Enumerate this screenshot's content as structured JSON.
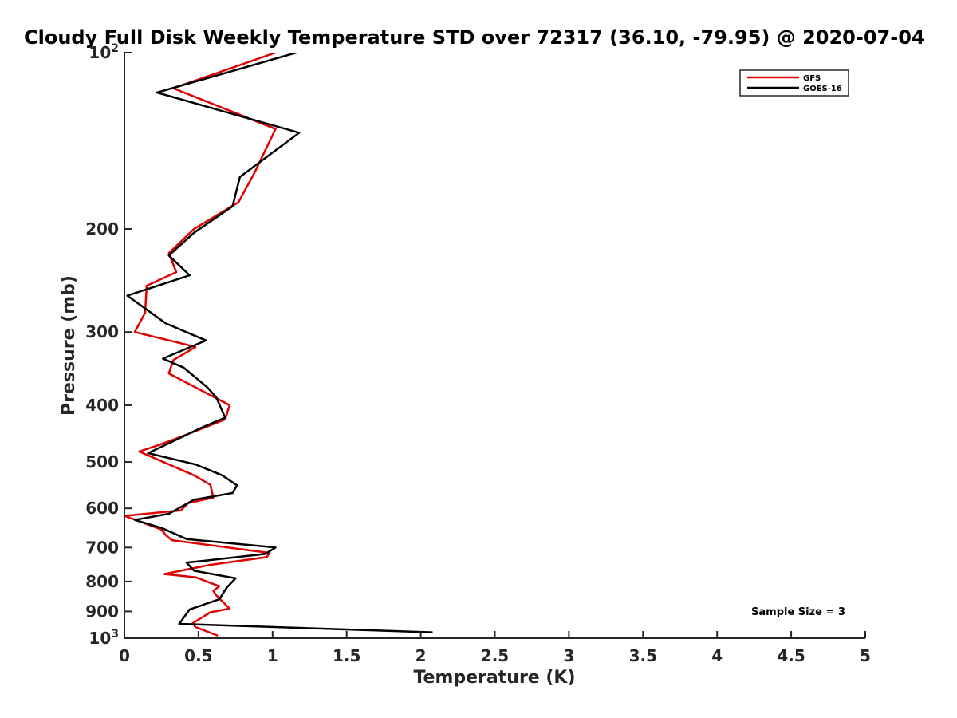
{
  "chart_data": {
    "type": "line",
    "title": "Cloudy Full Disk Weekly Temperature STD over 72317 (36.10, -79.95) @ 2020-07-04",
    "xlabel": "Temperature (K)",
    "ylabel": "Pressure (mb)",
    "xlim": [
      0,
      5
    ],
    "ylim": [
      100,
      1000
    ],
    "y_scale": "log",
    "y_reversed": true,
    "x_ticks": [
      "0",
      "0.5",
      "1",
      "1.5",
      "2",
      "2.5",
      "3",
      "3.5",
      "4",
      "4.5",
      "5"
    ],
    "y_ticks": [
      {
        "value": 100,
        "base": "10",
        "exp": "2"
      },
      {
        "value": 200,
        "label": "200"
      },
      {
        "value": 300,
        "label": "300"
      },
      {
        "value": 400,
        "label": "400"
      },
      {
        "value": 500,
        "label": "500"
      },
      {
        "value": 600,
        "label": "600"
      },
      {
        "value": 700,
        "label": "700"
      },
      {
        "value": 800,
        "label": "800"
      },
      {
        "value": 900,
        "label": "900"
      },
      {
        "value": 1000,
        "base": "10",
        "exp": "3"
      }
    ],
    "grid": false,
    "legend_position": "top-right",
    "annotation": "Sample Size = 3",
    "series": [
      {
        "name": "GFS",
        "color": "#e00000",
        "points": [
          [
            1.02,
            100
          ],
          [
            0.33,
            115
          ],
          [
            1.02,
            135
          ],
          [
            0.88,
            160
          ],
          [
            0.77,
            180
          ],
          [
            0.47,
            200
          ],
          [
            0.3,
            220
          ],
          [
            0.35,
            237
          ],
          [
            0.15,
            250
          ],
          [
            0.14,
            278
          ],
          [
            0.07,
            300
          ],
          [
            0.48,
            318
          ],
          [
            0.33,
            335
          ],
          [
            0.3,
            353
          ],
          [
            0.71,
            400
          ],
          [
            0.68,
            423
          ],
          [
            0.43,
            448
          ],
          [
            0.24,
            467
          ],
          [
            0.1,
            480
          ],
          [
            0.47,
            527
          ],
          [
            0.58,
            547
          ],
          [
            0.6,
            575
          ],
          [
            0.43,
            588
          ],
          [
            0.38,
            605
          ],
          [
            0.0,
            618
          ],
          [
            0.25,
            652
          ],
          [
            0.28,
            667
          ],
          [
            0.32,
            680
          ],
          [
            0.98,
            715
          ],
          [
            0.96,
            727
          ],
          [
            0.57,
            750
          ],
          [
            0.27,
            777
          ],
          [
            0.48,
            787
          ],
          [
            0.64,
            815
          ],
          [
            0.6,
            830
          ],
          [
            0.62,
            845
          ],
          [
            0.71,
            890
          ],
          [
            0.58,
            903
          ],
          [
            0.46,
            943
          ],
          [
            0.48,
            957
          ],
          [
            0.63,
            990
          ]
        ]
      },
      {
        "name": "GOES-16",
        "color": "#000000",
        "points": [
          [
            1.16,
            100
          ],
          [
            0.22,
            117
          ],
          [
            1.18,
            137
          ],
          [
            0.78,
            163
          ],
          [
            0.73,
            183
          ],
          [
            0.47,
            203
          ],
          [
            0.3,
            222
          ],
          [
            0.44,
            240
          ],
          [
            0.02,
            260
          ],
          [
            0.28,
            290
          ],
          [
            0.55,
            310
          ],
          [
            0.26,
            333
          ],
          [
            0.4,
            345
          ],
          [
            0.56,
            373
          ],
          [
            0.62,
            388
          ],
          [
            0.68,
            420
          ],
          [
            0.52,
            437
          ],
          [
            0.16,
            483
          ],
          [
            0.48,
            505
          ],
          [
            0.66,
            527
          ],
          [
            0.76,
            548
          ],
          [
            0.73,
            565
          ],
          [
            0.47,
            580
          ],
          [
            0.3,
            613
          ],
          [
            0.07,
            628
          ],
          [
            0.25,
            648
          ],
          [
            0.42,
            677
          ],
          [
            1.02,
            700
          ],
          [
            0.95,
            718
          ],
          [
            0.42,
            743
          ],
          [
            0.47,
            767
          ],
          [
            0.75,
            790
          ],
          [
            0.69,
            820
          ],
          [
            0.64,
            858
          ],
          [
            0.44,
            893
          ],
          [
            0.37,
            945
          ],
          [
            2.08,
            977
          ]
        ]
      }
    ]
  }
}
